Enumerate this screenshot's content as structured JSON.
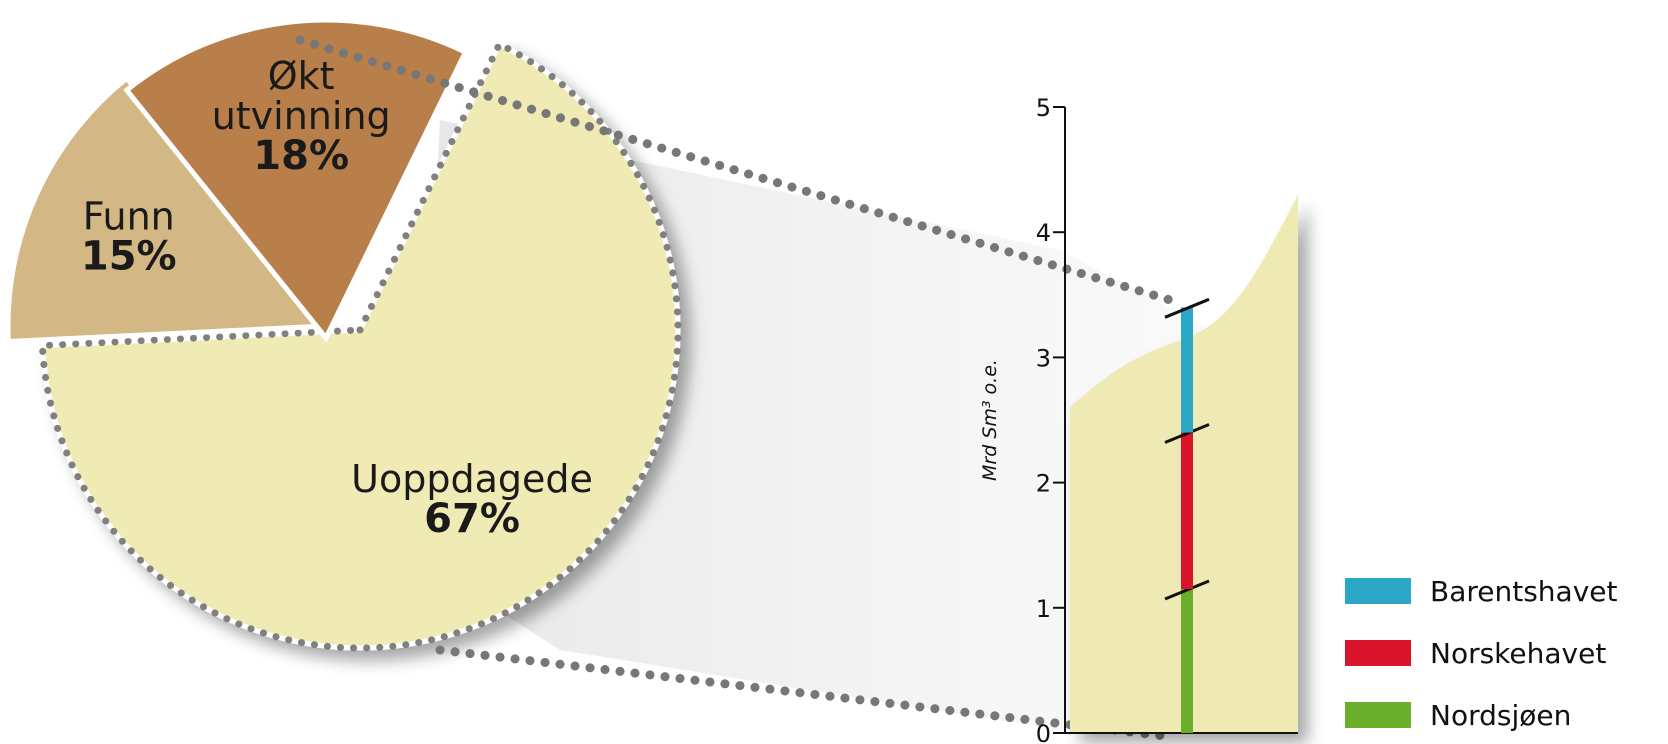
{
  "chart_data": [
    {
      "type": "pie",
      "categories": [
        "Uoppdagede",
        "Funn",
        "Økt utvinning"
      ],
      "values": [
        67,
        15,
        18
      ],
      "value_labels": [
        "67%",
        "15%",
        "18%"
      ],
      "colors": [
        "#f0eab4",
        "#d3b784",
        "#b97f4a"
      ],
      "exploded": "Uoppdagede"
    },
    {
      "type": "bar",
      "stacked": true,
      "ylabel": "Mrd Sm³ o.e.",
      "ylim": [
        0,
        5
      ],
      "yticks": [
        0,
        1,
        2,
        3,
        4,
        5
      ],
      "ytick_labels": [
        "0",
        "1",
        "2",
        "3",
        "4",
        "5"
      ],
      "series": [
        {
          "name": "Nordsjøen",
          "value": 1.15,
          "color": "#6aae2b"
        },
        {
          "name": "Norskehavet",
          "value": 1.25,
          "color": "#d9142b"
        },
        {
          "name": "Barentshavet",
          "value": 1.0,
          "color": "#2ba7c8"
        }
      ],
      "uncertainty_band": {
        "low": [
          2.6,
          3.1,
          3.6
        ],
        "high_end": 4.3
      }
    }
  ]
}
